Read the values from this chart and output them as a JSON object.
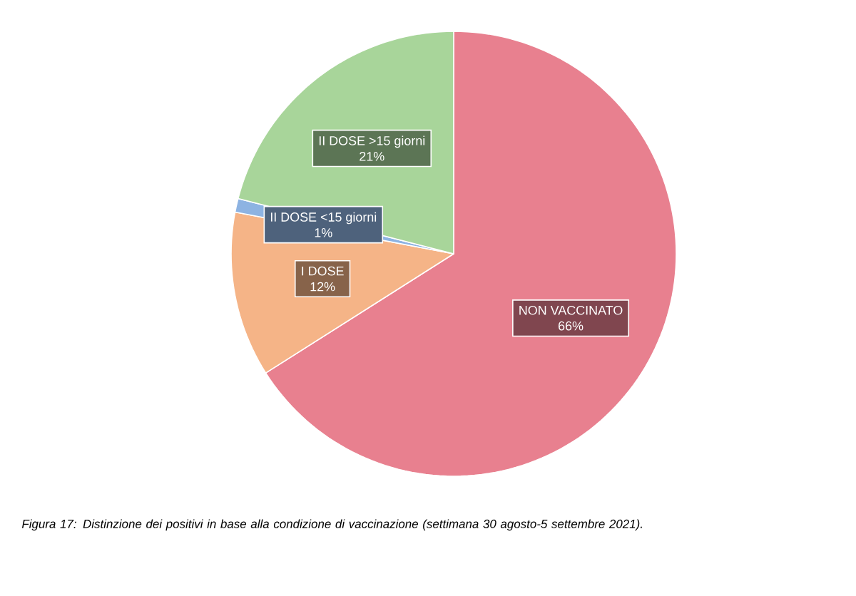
{
  "chart_data": {
    "type": "pie",
    "categories": [
      "NON VACCINATO",
      "I DOSE",
      "II DOSE <15 giorni",
      "II DOSE >15 giorni"
    ],
    "values": [
      66,
      12,
      1,
      21
    ],
    "colors": [
      "#e8808f",
      "#f5b487",
      "#8db3e2",
      "#a8d59a"
    ],
    "value_labels": [
      "66%",
      "12%",
      "1%",
      "21%"
    ],
    "annotations": [
      "Figura 17: Distinzione dei positivi in base alla condizione di vaccinazione (settimana 30 agosto-5 settembre 2021)."
    ]
  }
}
